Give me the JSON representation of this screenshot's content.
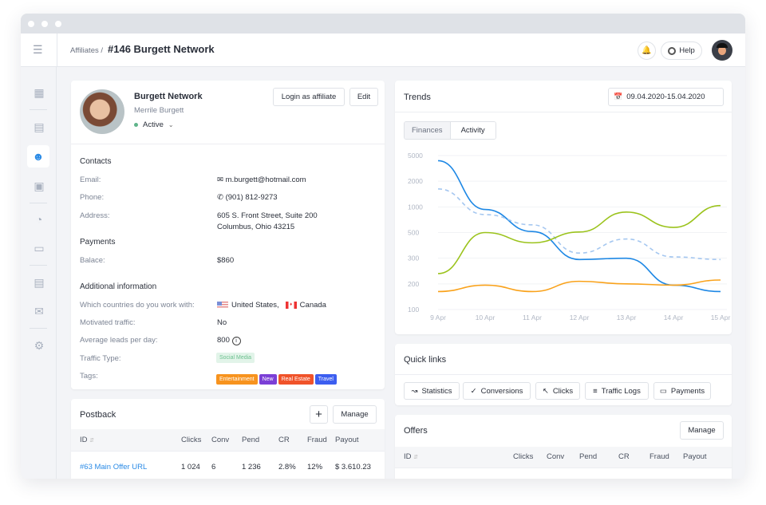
{
  "header": {
    "breadcrumb": "Affiliates /",
    "title": "#146 Burgett Network",
    "help_label": "Help"
  },
  "sidebar": {
    "items": [
      {
        "icon": "dashboard-icon"
      },
      {
        "icon": "id-card-icon"
      },
      {
        "icon": "user-icon",
        "active": true
      },
      {
        "icon": "briefcase-icon"
      },
      {
        "icon": "chart-pie-icon"
      },
      {
        "icon": "credit-card-icon"
      },
      {
        "icon": "card-sync-icon"
      },
      {
        "icon": "mail-icon"
      },
      {
        "icon": "gear-icon"
      }
    ]
  },
  "profile": {
    "company": "Burgett Network",
    "name": "Merrile Burgett",
    "status": "Active",
    "status_color": "#5fb48a",
    "login_label": "Login as affiliate",
    "edit_label": "Edit"
  },
  "contacts": {
    "title": "Contacts",
    "email_label": "Email:",
    "email": "m.burgett@hotmail.com",
    "phone_label": "Phone:",
    "phone": "(901) 812-9273",
    "address_label": "Address:",
    "address1": "605 S. Front Street, Suite 200",
    "address2": "Columbus, Ohio 43215"
  },
  "payments": {
    "title": "Payments",
    "balance_label": "Balace:",
    "balance": "$860"
  },
  "additional": {
    "title": "Additional information",
    "countries_label": "Which countries do you work with:",
    "country1": "United States,",
    "country2": "Canada",
    "motivated_label": "Motivated traffic:",
    "motivated": "No",
    "leads_label": "Average leads per day:",
    "leads": "800",
    "traffic_label": "Traffic Type:",
    "traffic": "Social Media",
    "tags_label": "Tags:",
    "tags": [
      {
        "label": "Entertainment",
        "color": "#f7931e"
      },
      {
        "label": "New",
        "color": "#7b3fd6"
      },
      {
        "label": "Real Estate",
        "color": "#f0532a"
      },
      {
        "label": "Travel",
        "color": "#3c5ef0"
      }
    ]
  },
  "postback": {
    "title": "Postback",
    "manage_label": "Manage",
    "columns": [
      "ID",
      "Clicks",
      "Conv",
      "Pend",
      "CR",
      "Fraud",
      "Payout"
    ],
    "rows": [
      {
        "id": "#63  Main Offer URL",
        "clicks": "1 024",
        "conv": "6",
        "pend": "1 236",
        "cr": "2.8%",
        "fraud": "12%",
        "payout": "$ 3.610.23"
      }
    ]
  },
  "trends": {
    "title": "Trends",
    "date_range": "09.04.2020-15.04.2020",
    "tabs": [
      "Finances",
      "Activity"
    ]
  },
  "chart_data": {
    "type": "line",
    "categories": [
      "9 Apr",
      "10 Apr",
      "11 Apr",
      "12 Apr",
      "13 Apr",
      "14 Apr",
      "15 Apr"
    ],
    "y_ticks": [
      100,
      200,
      300,
      500,
      1000,
      2000,
      5000
    ],
    "ylim": [
      100,
      5000
    ],
    "grid": true,
    "series": [
      {
        "color": "#1e88e5",
        "style": "solid",
        "values": [
          4400,
          950,
          520,
          295,
          300,
          195,
          170
        ]
      },
      {
        "color": "#a5c7f0",
        "style": "dashed",
        "values": [
          1700,
          850,
          650,
          340,
          450,
          310,
          295
        ]
      },
      {
        "color": "#9bc31c",
        "style": "solid",
        "values": [
          240,
          500,
          420,
          510,
          900,
          600,
          1050
        ]
      },
      {
        "color": "#f9a21b",
        "style": "solid",
        "values": [
          170,
          195,
          170,
          210,
          200,
          195,
          215
        ]
      }
    ]
  },
  "quick_links": {
    "title": "Quick links",
    "items": [
      {
        "label": "Statistics",
        "icon": "line-chart-icon"
      },
      {
        "label": "Conversions",
        "icon": "check-circle-icon"
      },
      {
        "label": "Clicks",
        "icon": "cursor-icon"
      },
      {
        "label": "Traffic Logs",
        "icon": "list-icon"
      },
      {
        "label": "Payments",
        "icon": "credit-card-icon"
      }
    ]
  },
  "offers": {
    "title": "Offers",
    "manage_label": "Manage",
    "columns": [
      "ID",
      "Clicks",
      "Conv",
      "Pend",
      "CR",
      "Fraud",
      "Payout"
    ]
  }
}
